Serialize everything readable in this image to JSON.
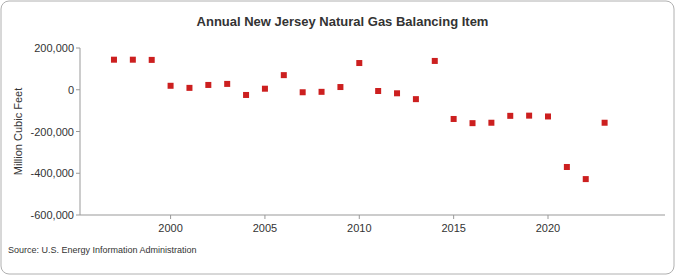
{
  "chart_data": {
    "type": "scatter",
    "title": "Annual New Jersey Natural Gas Balancing Item",
    "y_label": "Million Cubic Feet",
    "source": "Source: U.S. Energy Information Administration",
    "x": [
      1997,
      1998,
      1999,
      2000,
      2001,
      2002,
      2003,
      2004,
      2005,
      2006,
      2007,
      2008,
      2009,
      2010,
      2011,
      2012,
      2013,
      2014,
      2015,
      2016,
      2017,
      2018,
      2019,
      2020,
      2021,
      2022,
      2023
    ],
    "values": [
      144000,
      144000,
      143000,
      19000,
      9000,
      23000,
      28000,
      -25000,
      5000,
      70000,
      -12000,
      -10000,
      13000,
      128000,
      -6000,
      -17000,
      -45000,
      138000,
      -140000,
      -160000,
      -158000,
      -125000,
      -124000,
      -128000,
      -370000,
      -428000,
      -158000
    ],
    "color": "#cc1f1f",
    "marker": "square",
    "xlim": [
      1995.2,
      2026.2
    ],
    "xticks": [
      2000,
      2005,
      2010,
      2015,
      2020
    ],
    "ylim": [
      -600000,
      200000
    ],
    "yticks": [
      {
        "value": -600000,
        "label": "-600,000"
      },
      {
        "value": -400000,
        "label": "-400,000"
      },
      {
        "value": -200000,
        "label": "-200,000"
      },
      {
        "value": 0,
        "label": "0"
      },
      {
        "value": 200000,
        "label": "200,000"
      }
    ],
    "grid": false
  }
}
